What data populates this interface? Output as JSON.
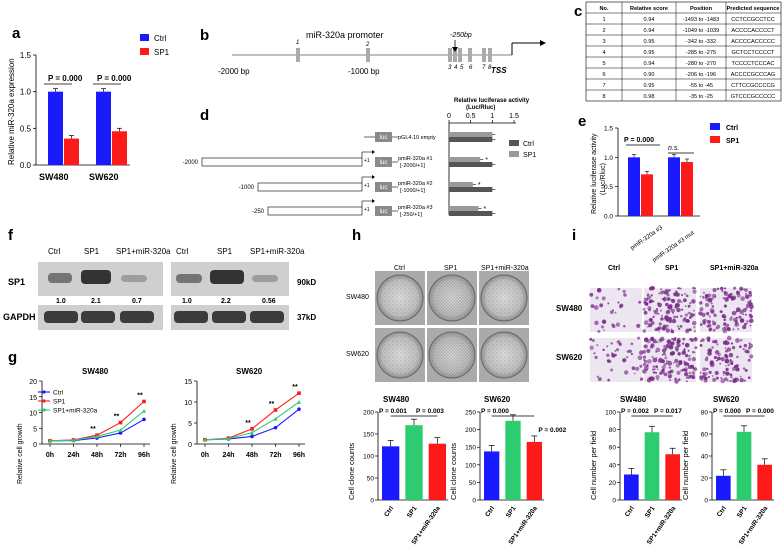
{
  "colors": {
    "ctrl": "#1a1aff",
    "sp1": "#ff1a1a",
    "mir": "#2ecc71",
    "gray": "#9a9a9a",
    "darkgray": "#555555",
    "blot": "#2a2a2a"
  },
  "panel_labels": {
    "a": "a",
    "b": "b",
    "c": "c",
    "d": "d",
    "e": "e",
    "f": "f",
    "g": "g",
    "h": "h",
    "i": "i"
  },
  "panel_a": {
    "ylabel": "Relative miR-320a expression",
    "legend": [
      "Ctrl",
      "SP1"
    ],
    "pvals": [
      "P = 0.000",
      "P = 0.000"
    ],
    "yticks": [
      "0.0",
      "0.5",
      "1.0",
      "1.5"
    ]
  },
  "panel_b": {
    "title": "miR-320a promoter",
    "mark_250": "-250bp",
    "left_label": "-2000 bp",
    "mid_label": "-1000 bp",
    "tss": "TSS",
    "site_numbers": [
      "1",
      "2",
      "3",
      "4",
      "5",
      "6",
      "7",
      "8"
    ]
  },
  "panel_c": {
    "headers": [
      "No.",
      "Relative score",
      "Position",
      "Predicted sequence"
    ],
    "rows": [
      [
        "1",
        "0.94",
        "-1493 to -1483",
        "CCTCCGCCTCC"
      ],
      [
        "2",
        "0.94",
        "-1049 to -1039",
        "ACCCCACCCCT"
      ],
      [
        "3",
        "0.95",
        "-342 to -332",
        "ACCCCACCCCC"
      ],
      [
        "4",
        "0.95",
        "-285 to -275",
        "GCTCCTCCCCT"
      ],
      [
        "5",
        "0.94",
        "-280 to -270",
        "TCCCCTCCCAC"
      ],
      [
        "6",
        "0.90",
        "-206 to -196",
        "ACCCCGCCCAG"
      ],
      [
        "7",
        "0.95",
        "-55 to -45",
        "CTTCCGCCCCG"
      ],
      [
        "8",
        "0.98",
        "-35 to -25",
        "GTCCCGCCCCC"
      ]
    ]
  },
  "panel_d": {
    "title": "Relative luciferase activity",
    "subtitle": "(Luc/Rluc)",
    "xticks": [
      "0",
      "0.5",
      "1",
      "1.5"
    ],
    "legend": [
      "Ctrl",
      "SP1"
    ],
    "luc": "luc",
    "plus1": "+1",
    "constructs": [
      {
        "name": "pGL4.10 empty",
        "sub": "",
        "start": ""
      },
      {
        "name": "pmiR-320a #1",
        "sub": "[-2000/+1]",
        "start": "-2000"
      },
      {
        "name": "pmiR-320a #2",
        "sub": "[-1000/+1]",
        "start": "-1000"
      },
      {
        "name": "pmiR-320a #3",
        "sub": "[-250/+1]",
        "start": "-250"
      }
    ],
    "star": "*"
  },
  "panel_e": {
    "ylabel": "Relative luciferase activity",
    "ylabel2": "(Luc/Rluc)",
    "legend": [
      "Ctrl",
      "SP1"
    ],
    "pvals": [
      "P = 0.000",
      "n.s."
    ],
    "categories": [
      "pmiR-320a #3",
      "pmiR-320a #3 mut"
    ],
    "yticks": [
      "0.0",
      "0.5",
      "1.0",
      "1.5"
    ]
  },
  "panel_f": {
    "lanes": [
      "Ctrl",
      "SP1",
      "SP1+miR-320a"
    ],
    "rows": [
      "SP1",
      "GAPDH"
    ],
    "sizes": [
      "90kD",
      "37kD"
    ],
    "quant_left": [
      "1.0",
      "2.1",
      "0.7"
    ],
    "quant_right": [
      "1.0",
      "2.2",
      "0.56"
    ]
  },
  "panel_g": {
    "titles": [
      "SW480",
      "SW620"
    ],
    "ylabel": "Relative cell growth",
    "xticks": [
      "0h",
      "24h",
      "48h",
      "72h",
      "96h"
    ],
    "legend": [
      "Ctrl",
      "SP1",
      "SP1+miR-320a"
    ],
    "sig": "**",
    "yticks_left": [
      "0",
      "5",
      "10",
      "15",
      "20"
    ],
    "yticks_right": [
      "0",
      "5",
      "10",
      "15"
    ]
  },
  "panel_h": {
    "cols": [
      "Ctrl",
      "SP1",
      "SP1+miR-320a"
    ],
    "rows": [
      "SW480",
      "SW620"
    ],
    "titles": [
      "SW480",
      "SW620"
    ],
    "ylabel": "Cell clone counts",
    "pvals_left": [
      "P = 0.001",
      "P = 0.003"
    ],
    "pvals_right": [
      "P = 0.000",
      "P = 0.002"
    ],
    "yticks_left": [
      "0",
      "50",
      "100",
      "150",
      "200"
    ],
    "yticks_right": [
      "0",
      "50",
      "100",
      "150",
      "200",
      "250"
    ]
  },
  "panel_i": {
    "cols": [
      "Ctrl",
      "SP1",
      "SP1+miR-320a"
    ],
    "rows": [
      "SW480",
      "SW620"
    ],
    "titles": [
      "SW480",
      "SW620"
    ],
    "ylabel": "Cell number per field",
    "pvals_left": [
      "P = 0.002",
      "P = 0.017"
    ],
    "pvals_right": [
      "P = 0.000",
      "P = 0.000"
    ],
    "yticks_left": [
      "0",
      "20",
      "40",
      "60",
      "80",
      "100"
    ],
    "yticks_right": [
      "0",
      "20",
      "40",
      "60",
      "80"
    ]
  },
  "chart_data": [
    {
      "id": "a",
      "type": "bar",
      "categories": [
        "SW480",
        "SW620"
      ],
      "series": [
        {
          "name": "Ctrl",
          "values": [
            1.0,
            1.0
          ]
        },
        {
          "name": "SP1",
          "values": [
            0.36,
            0.46
          ]
        }
      ],
      "ylabel": "Relative miR-320a expression",
      "ylim": [
        0,
        1.5
      ]
    },
    {
      "id": "d",
      "type": "bar",
      "orientation": "horizontal",
      "categories": [
        "pGL4.10 empty",
        "pmiR-320a #1",
        "pmiR-320a #2",
        "pmiR-320a #3"
      ],
      "series": [
        {
          "name": "Ctrl",
          "values": [
            1.0,
            1.0,
            1.0,
            1.0
          ]
        },
        {
          "name": "SP1",
          "values": [
            1.0,
            0.72,
            0.55,
            0.68
          ]
        }
      ],
      "xlim": [
        0,
        1.5
      ]
    },
    {
      "id": "e",
      "type": "bar",
      "categories": [
        "pmiR-320a #3",
        "pmiR-320a #3 mut"
      ],
      "series": [
        {
          "name": "Ctrl",
          "values": [
            1.0,
            1.0
          ]
        },
        {
          "name": "SP1",
          "values": [
            0.71,
            0.92
          ]
        }
      ],
      "ylabel": "Relative luciferase activity (Luc/Rluc)",
      "ylim": [
        0,
        1.5
      ]
    },
    {
      "id": "g1",
      "type": "line",
      "title": "SW480",
      "x": [
        "0h",
        "24h",
        "48h",
        "72h",
        "96h"
      ],
      "series": [
        {
          "name": "Ctrl",
          "values": [
            1,
            1.1,
            1.9,
            3.5,
            7.8
          ]
        },
        {
          "name": "SP1",
          "values": [
            1,
            1.3,
            2.8,
            6.8,
            13.5
          ]
        },
        {
          "name": "SP1+miR-320a",
          "values": [
            1,
            1.2,
            2.4,
            4.4,
            10.5
          ]
        }
      ],
      "ylabel": "Relative cell growth",
      "ylim": [
        0,
        20
      ]
    },
    {
      "id": "g2",
      "type": "line",
      "title": "SW620",
      "x": [
        "0h",
        "24h",
        "48h",
        "72h",
        "96h"
      ],
      "series": [
        {
          "name": "Ctrl",
          "values": [
            1,
            1.2,
            1.8,
            3.9,
            8.3
          ]
        },
        {
          "name": "SP1",
          "values": [
            1,
            1.4,
            3.6,
            8.1,
            12.1
          ]
        },
        {
          "name": "SP1+miR-320a",
          "values": [
            1,
            1.3,
            2.7,
            6.0,
            10.0
          ]
        }
      ],
      "ylabel": "Relative cell growth",
      "ylim": [
        0,
        15
      ]
    },
    {
      "id": "h1",
      "type": "bar",
      "title": "SW480",
      "categories": [
        "Ctrl",
        "SP1",
        "SP1+miR-320a"
      ],
      "values": [
        122,
        170,
        128
      ],
      "ylabel": "Cell clone counts",
      "ylim": [
        0,
        200
      ]
    },
    {
      "id": "h2",
      "type": "bar",
      "title": "SW620",
      "categories": [
        "Ctrl",
        "SP1",
        "SP1+miR-320a"
      ],
      "values": [
        138,
        225,
        165
      ],
      "ylabel": "Cell clone counts",
      "ylim": [
        0,
        250
      ]
    },
    {
      "id": "i1",
      "type": "bar",
      "title": "SW480",
      "categories": [
        "Ctrl",
        "SP1",
        "SP1+miR-320a"
      ],
      "values": [
        29,
        77,
        52
      ],
      "ylabel": "Cell number per field",
      "ylim": [
        0,
        100
      ]
    },
    {
      "id": "i2",
      "type": "bar",
      "title": "SW620",
      "categories": [
        "Ctrl",
        "SP1",
        "SP1+miR-320a"
      ],
      "values": [
        22,
        62,
        32
      ],
      "ylabel": "Cell number per field",
      "ylim": [
        0,
        80
      ]
    }
  ]
}
